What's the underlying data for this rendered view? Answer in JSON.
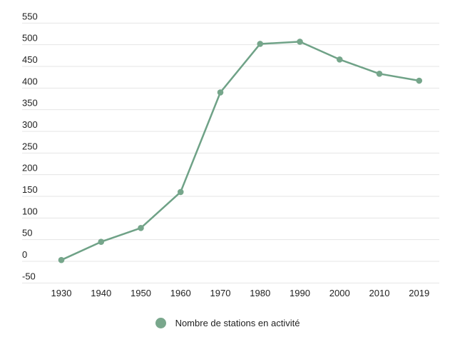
{
  "chart_data": {
    "type": "line",
    "title": "",
    "xlabel": "",
    "ylabel": "",
    "categories": [
      "1930",
      "1940",
      "1950",
      "1960",
      "1970",
      "1980",
      "1990",
      "2000",
      "2010",
      "2019"
    ],
    "series": [
      {
        "name": "Nombre de stations en activité",
        "values": [
          3,
          45,
          77,
          160,
          390,
          502,
          507,
          466,
          433,
          417
        ]
      }
    ],
    "ylim": [
      -50,
      550
    ],
    "y_ticks": [
      550,
      500,
      450,
      400,
      350,
      300,
      250,
      200,
      150,
      100,
      50,
      0,
      -50
    ],
    "grid": "horizontal",
    "legend_position": "bottom-center"
  },
  "legend": {
    "items": [
      {
        "label": "Nombre de stations en activité",
        "marker": "circle-icon",
        "marker_color": "#79a78c"
      }
    ]
  },
  "colors": {
    "background": "#ffffff",
    "gridline": "#e4e4e4",
    "tick_label": "#1f1f1f",
    "line": "#6fa287",
    "point": "#76a68b"
  }
}
